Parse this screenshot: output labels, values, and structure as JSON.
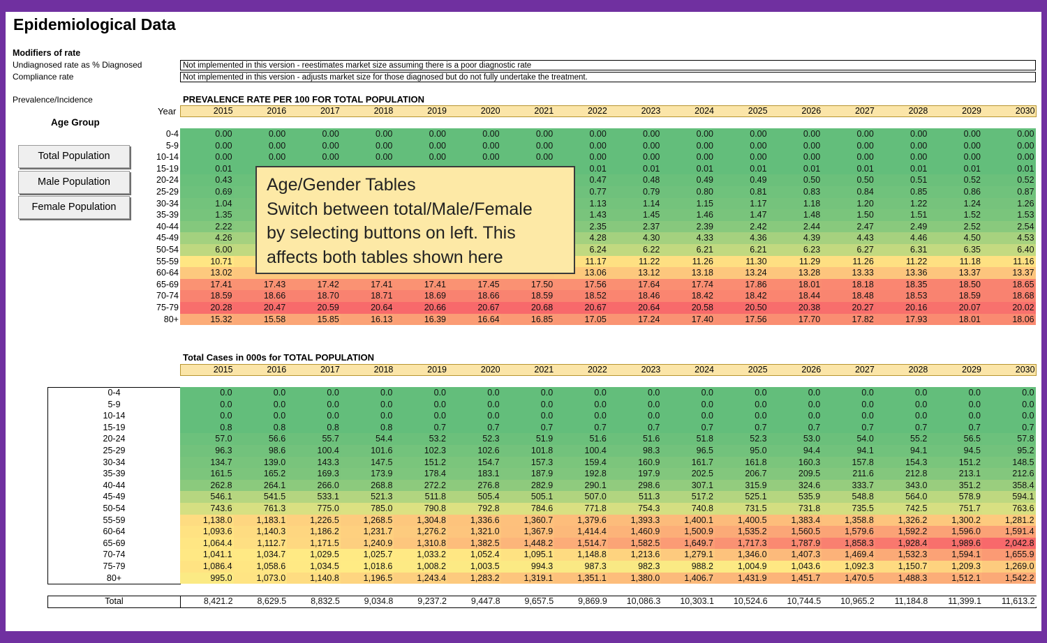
{
  "title": "Epidemiological Data",
  "modifiers": {
    "heading": "Modifiers of rate",
    "undiagnosed_label": "Undiagnosed rate as % Diagnosed",
    "undiagnosed_note": "Not implemented in this version - reestimates market size assuming there is a poor diagnostic rate",
    "compliance_label": "Compliance rate",
    "compliance_note": "Not implemented in this version - adjusts market size for those diagnosed but do not fully undertake the treatment."
  },
  "prevalence_label": "Prevalence/Incidence",
  "year_label": "Year",
  "age_group_label": "Age Group",
  "buttons": {
    "total": "Total Population",
    "male": "Male Population",
    "female": "Female Population"
  },
  "callout": {
    "line1": "Age/Gender Tables",
    "line2": "Switch between total/Male/Female",
    "line3": "by selecting buttons on left.  This",
    "line4": "affects both tables shown here"
  },
  "years": [
    "2015",
    "2016",
    "2017",
    "2018",
    "2019",
    "2020",
    "2021",
    "2022",
    "2023",
    "2024",
    "2025",
    "2026",
    "2027",
    "2028",
    "2029",
    "2030"
  ],
  "age_groups": [
    "0-4",
    "5-9",
    "10-14",
    "15-19",
    "20-24",
    "25-29",
    "30-34",
    "35-39",
    "40-44",
    "45-49",
    "50-54",
    "55-59",
    "60-64",
    "65-69",
    "70-74",
    "75-79",
    "80+"
  ],
  "colors": {
    "frame": "#7030a0",
    "header_fill": "#fbe5a8",
    "low": "#63be7b",
    "mid": "#ffeb84",
    "high": "#f8696b"
  },
  "prevalence_table": {
    "title": "PREVALENCE RATE PER 100 FOR TOTAL POPULATION",
    "rows": [
      [
        "0.00",
        "0.00",
        "0.00",
        "0.00",
        "0.00",
        "0.00",
        "0.00",
        "0.00",
        "0.00",
        "0.00",
        "0.00",
        "0.00",
        "0.00",
        "0.00",
        "0.00",
        "0.00"
      ],
      [
        "0.00",
        "0.00",
        "0.00",
        "0.00",
        "0.00",
        "0.00",
        "0.00",
        "0.00",
        "0.00",
        "0.00",
        "0.00",
        "0.00",
        "0.00",
        "0.00",
        "0.00",
        "0.00"
      ],
      [
        "0.00",
        "0.00",
        "0.00",
        "0.00",
        "0.00",
        "0.00",
        "0.00",
        "0.00",
        "0.00",
        "0.00",
        "0.00",
        "0.00",
        "0.00",
        "0.00",
        "0.00",
        "0.00"
      ],
      [
        "0.01",
        "",
        "",
        "",
        "",
        "",
        "",
        "0.01",
        "0.01",
        "0.01",
        "0.01",
        "0.01",
        "0.01",
        "0.01",
        "0.01",
        "0.01"
      ],
      [
        "0.43",
        "",
        "",
        "",
        "",
        "",
        "",
        "0.47",
        "0.48",
        "0.49",
        "0.49",
        "0.50",
        "0.50",
        "0.51",
        "0.52",
        "0.52"
      ],
      [
        "0.69",
        "",
        "",
        "",
        "",
        "",
        "",
        "0.77",
        "0.79",
        "0.80",
        "0.81",
        "0.83",
        "0.84",
        "0.85",
        "0.86",
        "0.87"
      ],
      [
        "1.04",
        "",
        "",
        "",
        "",
        "",
        "",
        "1.13",
        "1.14",
        "1.15",
        "1.17",
        "1.18",
        "1.20",
        "1.22",
        "1.24",
        "1.26"
      ],
      [
        "1.35",
        "",
        "",
        "",
        "",
        "",
        "",
        "1.43",
        "1.45",
        "1.46",
        "1.47",
        "1.48",
        "1.50",
        "1.51",
        "1.52",
        "1.53"
      ],
      [
        "2.22",
        "",
        "",
        "",
        "",
        "",
        "",
        "2.35",
        "2.37",
        "2.39",
        "2.42",
        "2.44",
        "2.47",
        "2.49",
        "2.52",
        "2.54"
      ],
      [
        "4.26",
        "",
        "",
        "",
        "",
        "",
        "",
        "4.28",
        "4.30",
        "4.33",
        "4.36",
        "4.39",
        "4.43",
        "4.46",
        "4.50",
        "4.53"
      ],
      [
        "6.00",
        "",
        "",
        "",
        "",
        "",
        "",
        "6.24",
        "6.22",
        "6.21",
        "6.21",
        "6.23",
        "6.27",
        "6.31",
        "6.35",
        "6.40"
      ],
      [
        "10.71",
        "",
        "",
        "",
        "",
        "",
        "",
        "11.17",
        "11.22",
        "11.26",
        "11.30",
        "11.29",
        "11.26",
        "11.22",
        "11.18",
        "11.16"
      ],
      [
        "13.02",
        "",
        "",
        "",
        "",
        "",
        "",
        "13.06",
        "13.12",
        "13.18",
        "13.24",
        "13.28",
        "13.33",
        "13.36",
        "13.37",
        "13.37"
      ],
      [
        "17.41",
        "17.43",
        "17.42",
        "17.41",
        "17.41",
        "17.45",
        "17.50",
        "17.56",
        "17.64",
        "17.74",
        "17.86",
        "18.01",
        "18.18",
        "18.35",
        "18.50",
        "18.65"
      ],
      [
        "18.59",
        "18.66",
        "18.70",
        "18.71",
        "18.69",
        "18.66",
        "18.59",
        "18.52",
        "18.46",
        "18.42",
        "18.42",
        "18.44",
        "18.48",
        "18.53",
        "18.59",
        "18.68"
      ],
      [
        "20.28",
        "20.47",
        "20.59",
        "20.64",
        "20.66",
        "20.67",
        "20.68",
        "20.67",
        "20.64",
        "20.58",
        "20.50",
        "20.38",
        "20.27",
        "20.16",
        "20.07",
        "20.02"
      ],
      [
        "15.32",
        "15.58",
        "15.85",
        "16.13",
        "16.39",
        "16.64",
        "16.85",
        "17.05",
        "17.24",
        "17.40",
        "17.56",
        "17.70",
        "17.82",
        "17.93",
        "18.01",
        "18.06"
      ]
    ]
  },
  "cases_table": {
    "title": "Total Cases in 000s for TOTAL POPULATION",
    "rows": [
      [
        "0.0",
        "0.0",
        "0.0",
        "0.0",
        "0.0",
        "0.0",
        "0.0",
        "0.0",
        "0.0",
        "0.0",
        "0.0",
        "0.0",
        "0.0",
        "0.0",
        "0.0",
        "0.0"
      ],
      [
        "0.0",
        "0.0",
        "0.0",
        "0.0",
        "0.0",
        "0.0",
        "0.0",
        "0.0",
        "0.0",
        "0.0",
        "0.0",
        "0.0",
        "0.0",
        "0.0",
        "0.0",
        "0.0"
      ],
      [
        "0.0",
        "0.0",
        "0.0",
        "0.0",
        "0.0",
        "0.0",
        "0.0",
        "0.0",
        "0.0",
        "0.0",
        "0.0",
        "0.0",
        "0.0",
        "0.0",
        "0.0",
        "0.0"
      ],
      [
        "0.8",
        "0.8",
        "0.8",
        "0.8",
        "0.7",
        "0.7",
        "0.7",
        "0.7",
        "0.7",
        "0.7",
        "0.7",
        "0.7",
        "0.7",
        "0.7",
        "0.7",
        "0.7"
      ],
      [
        "57.0",
        "56.6",
        "55.7",
        "54.4",
        "53.2",
        "52.3",
        "51.9",
        "51.6",
        "51.6",
        "51.8",
        "52.3",
        "53.0",
        "54.0",
        "55.2",
        "56.5",
        "57.8"
      ],
      [
        "96.3",
        "98.6",
        "100.4",
        "101.6",
        "102.3",
        "102.6",
        "101.8",
        "100.4",
        "98.3",
        "96.5",
        "95.0",
        "94.4",
        "94.1",
        "94.1",
        "94.5",
        "95.2"
      ],
      [
        "134.7",
        "139.0",
        "143.3",
        "147.5",
        "151.2",
        "154.7",
        "157.3",
        "159.4",
        "160.9",
        "161.7",
        "161.8",
        "160.3",
        "157.8",
        "154.3",
        "151.2",
        "148.5"
      ],
      [
        "161.5",
        "165.2",
        "169.3",
        "173.9",
        "178.4",
        "183.1",
        "187.9",
        "192.8",
        "197.9",
        "202.5",
        "206.7",
        "209.5",
        "211.6",
        "212.8",
        "213.1",
        "212.6"
      ],
      [
        "262.8",
        "264.1",
        "266.0",
        "268.8",
        "272.2",
        "276.8",
        "282.9",
        "290.1",
        "298.6",
        "307.1",
        "315.9",
        "324.6",
        "333.7",
        "343.0",
        "351.2",
        "358.4"
      ],
      [
        "546.1",
        "541.5",
        "533.1",
        "521.3",
        "511.8",
        "505.4",
        "505.1",
        "507.0",
        "511.3",
        "517.2",
        "525.1",
        "535.9",
        "548.8",
        "564.0",
        "578.9",
        "594.1"
      ],
      [
        "743.6",
        "761.3",
        "775.0",
        "785.0",
        "790.8",
        "792.8",
        "784.6",
        "771.8",
        "754.3",
        "740.8",
        "731.5",
        "731.8",
        "735.5",
        "742.5",
        "751.7",
        "763.6"
      ],
      [
        "1,138.0",
        "1,183.1",
        "1,226.5",
        "1,268.5",
        "1,304.8",
        "1,336.6",
        "1,360.7",
        "1,379.6",
        "1,393.3",
        "1,400.1",
        "1,400.5",
        "1,383.4",
        "1,358.8",
        "1,326.2",
        "1,300.2",
        "1,281.2"
      ],
      [
        "1,093.6",
        "1,140.3",
        "1,186.2",
        "1,231.7",
        "1,276.2",
        "1,321.0",
        "1,367.9",
        "1,414.4",
        "1,460.9",
        "1,500.9",
        "1,535.2",
        "1,560.5",
        "1,579.6",
        "1,592.2",
        "1,596.0",
        "1,591.4"
      ],
      [
        "1,064.4",
        "1,112.7",
        "1,171.5",
        "1,240.9",
        "1,310.8",
        "1,382.5",
        "1,448.2",
        "1,514.7",
        "1,582.5",
        "1,649.7",
        "1,717.3",
        "1,787.9",
        "1,858.3",
        "1,928.4",
        "1,989.6",
        "2,042.8"
      ],
      [
        "1,041.1",
        "1,034.7",
        "1,029.5",
        "1,025.7",
        "1,033.2",
        "1,052.4",
        "1,095.1",
        "1,148.8",
        "1,213.6",
        "1,279.1",
        "1,346.0",
        "1,407.3",
        "1,469.4",
        "1,532.3",
        "1,594.1",
        "1,655.9"
      ],
      [
        "1,086.4",
        "1,058.6",
        "1,034.5",
        "1,018.6",
        "1,008.2",
        "1,003.5",
        "994.3",
        "987.3",
        "982.3",
        "988.2",
        "1,004.9",
        "1,043.6",
        "1,092.3",
        "1,150.7",
        "1,209.3",
        "1,269.0"
      ],
      [
        "995.0",
        "1,073.0",
        "1,140.8",
        "1,196.5",
        "1,243.4",
        "1,283.2",
        "1,319.1",
        "1,351.1",
        "1,380.0",
        "1,406.7",
        "1,431.9",
        "1,451.7",
        "1,470.5",
        "1,488.3",
        "1,512.1",
        "1,542.2"
      ]
    ],
    "total_label": "Total",
    "totals": [
      "8,421.2",
      "8,629.5",
      "8,832.5",
      "9,034.8",
      "9,237.2",
      "9,447.8",
      "9,657.5",
      "9,869.9",
      "10,086.3",
      "10,303.1",
      "10,524.6",
      "10,744.5",
      "10,965.2",
      "11,184.8",
      "11,399.1",
      "11,613.2"
    ]
  }
}
